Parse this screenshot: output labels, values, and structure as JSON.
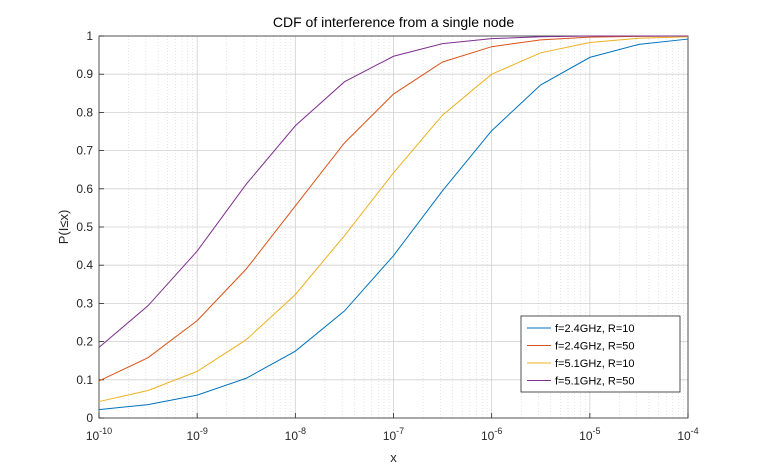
{
  "chart_data": {
    "type": "line",
    "title": "CDF of interference from a single node",
    "xlabel": "x",
    "ylabel": "P(I≤x)",
    "xscale": "log",
    "xlim": [
      1e-10,
      0.0001
    ],
    "ylim": [
      0,
      1
    ],
    "grid": "on",
    "legend_position": "bottom-right",
    "x": [
      1e-10,
      3.16e-10,
      1e-09,
      3.16e-09,
      1e-08,
      3.16e-08,
      1e-07,
      3.16e-07,
      1e-06,
      3.16e-06,
      1e-05,
      3.16e-05,
      0.0001
    ],
    "x_tick_labels": [
      {
        "base": "10",
        "exp": "-10"
      },
      {
        "base": "10",
        "exp": "-9"
      },
      {
        "base": "10",
        "exp": "-8"
      },
      {
        "base": "10",
        "exp": "-7"
      },
      {
        "base": "10",
        "exp": "-6"
      },
      {
        "base": "10",
        "exp": "-5"
      },
      {
        "base": "10",
        "exp": "-4"
      }
    ],
    "y_tick_labels": [
      "0",
      "0.1",
      "0.2",
      "0.3",
      "0.4",
      "0.5",
      "0.6",
      "0.7",
      "0.8",
      "0.9",
      "1"
    ],
    "series": [
      {
        "name": "f=2.4GHz, R=10",
        "color": "#0072BD",
        "values": [
          0.022,
          0.035,
          0.06,
          0.104,
          0.175,
          0.28,
          0.425,
          0.595,
          0.752,
          0.872,
          0.944,
          0.978,
          0.992
        ]
      },
      {
        "name": "f=2.4GHz, R=50",
        "color": "#D95319",
        "values": [
          0.097,
          0.158,
          0.255,
          0.39,
          0.555,
          0.72,
          0.848,
          0.932,
          0.972,
          0.99,
          0.997,
          0.999,
          1.0
        ]
      },
      {
        "name": "f=5.1GHz, R=10",
        "color": "#EDB120",
        "values": [
          0.043,
          0.072,
          0.122,
          0.205,
          0.323,
          0.477,
          0.642,
          0.793,
          0.9,
          0.956,
          0.983,
          0.994,
          0.998
        ]
      },
      {
        "name": "f=5.1GHz, R=50",
        "color": "#7E2F8E",
        "values": [
          0.185,
          0.294,
          0.437,
          0.612,
          0.765,
          0.88,
          0.947,
          0.98,
          0.993,
          0.998,
          1.0,
          1.0,
          1.0
        ]
      }
    ]
  }
}
